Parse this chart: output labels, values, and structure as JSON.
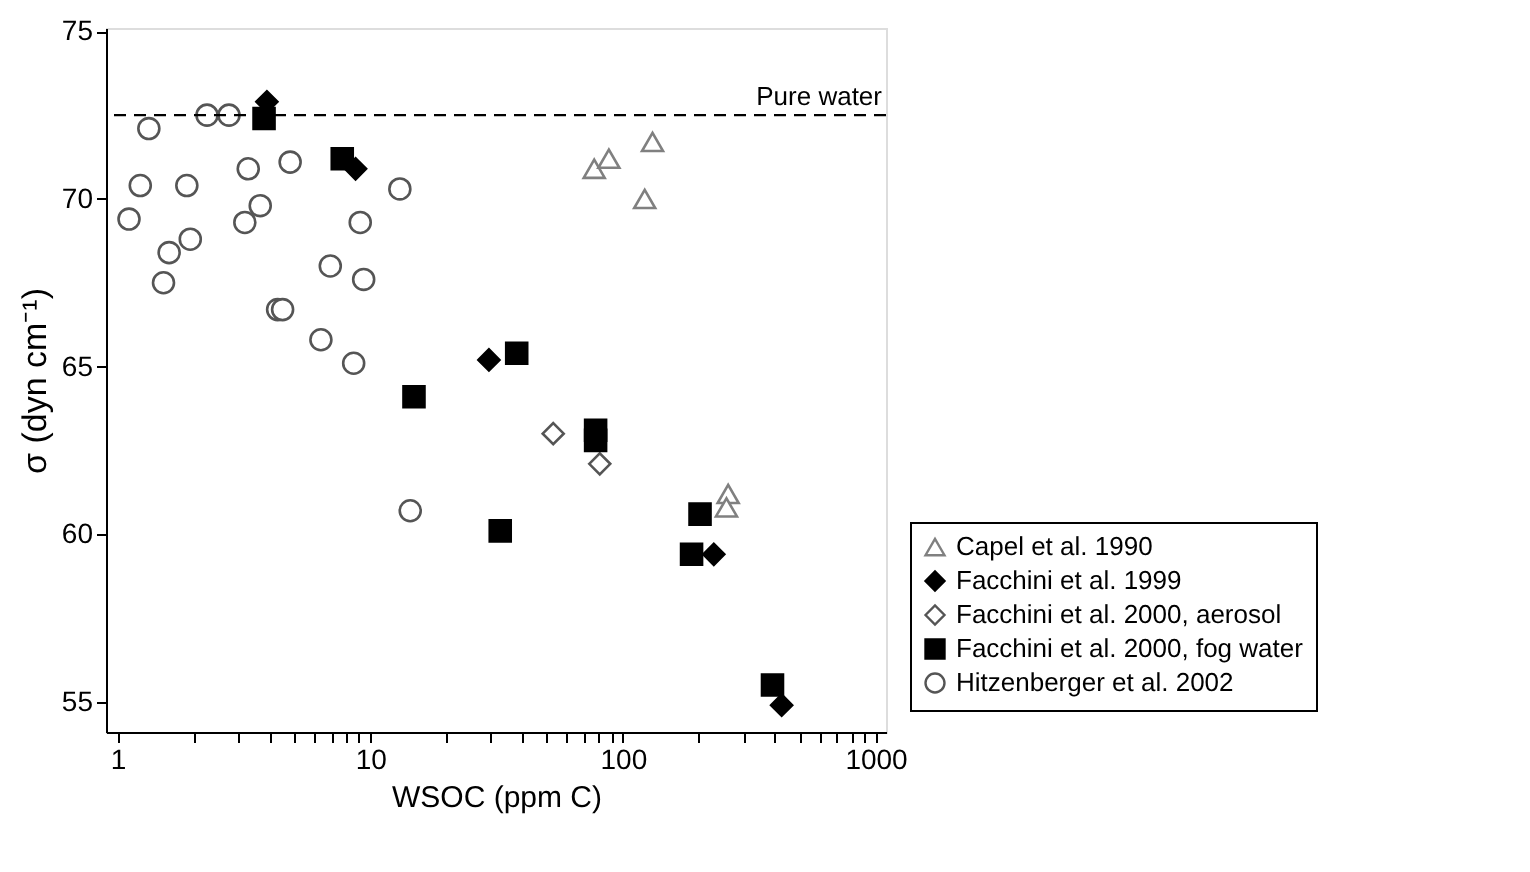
{
  "chart_data": {
    "type": "scatter",
    "xlabel": "WSOC (ppm C)",
    "ylabel": "σ (dyn cm⁻¹)",
    "log": "x",
    "xlim": [
      0.9,
      1100
    ],
    "ylim": [
      54.1,
      75.1
    ],
    "xticks": [
      1,
      {
        "value": 2,
        "label": null
      },
      {
        "value": 3,
        "label": null
      },
      {
        "value": 4,
        "label": null
      },
      {
        "value": 5,
        "label": null
      },
      {
        "value": 6,
        "label": null
      },
      {
        "value": 7,
        "label": null
      },
      {
        "value": 8,
        "label": null
      },
      {
        "value": 9,
        "label": null
      },
      10,
      {
        "value": 20,
        "label": null
      },
      {
        "value": 30,
        "label": null
      },
      {
        "value": 40,
        "label": null
      },
      {
        "value": 50,
        "label": null
      },
      {
        "value": 60,
        "label": null
      },
      {
        "value": 70,
        "label": null
      },
      {
        "value": 80,
        "label": null
      },
      {
        "value": 90,
        "label": null
      },
      100,
      {
        "value": 200,
        "label": null
      },
      {
        "value": 300,
        "label": null
      },
      {
        "value": 400,
        "label": null
      },
      {
        "value": 500,
        "label": null
      },
      {
        "value": 600,
        "label": null
      },
      {
        "value": 700,
        "label": null
      },
      {
        "value": 800,
        "label": null
      },
      {
        "value": 900,
        "label": null
      },
      1000
    ],
    "yticks": [
      55,
      60,
      65,
      70,
      75
    ],
    "grid": false,
    "legend": "right",
    "ref_lines": [
      {
        "axis": "y",
        "value": 72.5,
        "label": "Pure water",
        "line_style": "dashed",
        "color": "#000000"
      }
    ],
    "series": [
      {
        "name": "Capel et al. 1990",
        "color": "#808080",
        "marker": "triangle",
        "x": [
          77,
          88,
          131,
          122,
          261,
          257
        ],
        "values": [
          70.9,
          71.2,
          71.7,
          70.0,
          61.2,
          60.8
        ]
      },
      {
        "name": "Facchini et al. 1999",
        "color": "#000000",
        "marker": "diamond",
        "x": [
          3.9,
          8.75,
          29.5,
          229,
          425
        ],
        "values": [
          72.9,
          70.9,
          65.2,
          59.4,
          54.9
        ]
      },
      {
        "name": "Facchini et al. 2000, aerosol",
        "color": "#555555",
        "marker": "diamond",
        "x": [
          53,
          81
        ],
        "values": [
          63.0,
          62.1
        ]
      },
      {
        "name": "Facchini et al. 2000, fog water",
        "color": "#000000",
        "marker": "square",
        "x": [
          3.8,
          7.75,
          38,
          14.9,
          32.7,
          78,
          78,
          202,
          187,
          391
        ],
        "values": [
          72.4,
          71.2,
          65.4,
          64.1,
          60.1,
          63.1,
          62.8,
          60.6,
          59.4,
          55.5
        ]
      },
      {
        "name": "Hitzenberger et al. 2002",
        "color": "#555555",
        "marker": "circle",
        "x": [
          1.33,
          2.26,
          2.76,
          1.23,
          1.88,
          1.11,
          3.29,
          4.82,
          3.67,
          3.19,
          1.94,
          1.6,
          1.52,
          4.3,
          4.5,
          9.13,
          13.1,
          6.95,
          9.42,
          6.38,
          8.6,
          14.4
        ],
        "values": [
          72.1,
          72.5,
          72.5,
          70.4,
          70.4,
          69.4,
          70.9,
          71.1,
          69.8,
          69.3,
          68.8,
          68.4,
          67.5,
          66.7,
          66.7,
          69.3,
          70.3,
          68.0,
          67.6,
          65.8,
          65.1,
          60.7
        ]
      }
    ]
  }
}
